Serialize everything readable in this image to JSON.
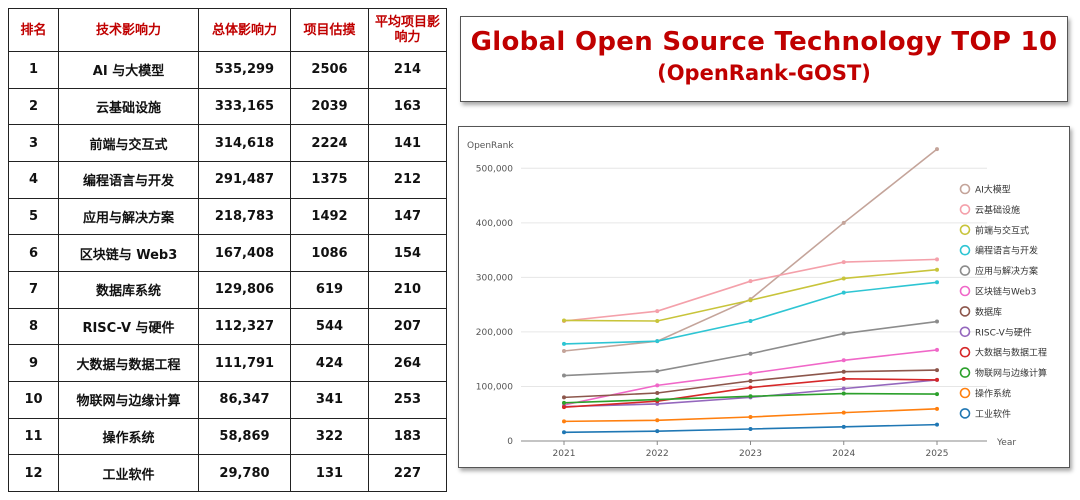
{
  "table": {
    "headers": [
      "排名",
      "技术影响力",
      "总体影响力",
      "项目估摸",
      "平均项目影响力"
    ],
    "rows": [
      [
        "1",
        "AI 与大模型",
        "535,299",
        "2506",
        "214"
      ],
      [
        "2",
        "云基础设施",
        "333,165",
        "2039",
        "163"
      ],
      [
        "3",
        "前端与交互式",
        "314,618",
        "2224",
        "141"
      ],
      [
        "4",
        "编程语言与开发",
        "291,487",
        "1375",
        "212"
      ],
      [
        "5",
        "应用与解决方案",
        "218,783",
        "1492",
        "147"
      ],
      [
        "6",
        "区块链与 Web3",
        "167,408",
        "1086",
        "154"
      ],
      [
        "7",
        "数据库系统",
        "129,806",
        "619",
        "210"
      ],
      [
        "8",
        "RISC-V 与硬件",
        "112,327",
        "544",
        "207"
      ],
      [
        "9",
        "大数据与数据工程",
        "111,791",
        "424",
        "264"
      ],
      [
        "10",
        "物联网与边缘计算",
        "86,347",
        "341",
        "253"
      ],
      [
        "11",
        "操作系统",
        "58,869",
        "322",
        "183"
      ],
      [
        "12",
        "工业软件",
        "29,780",
        "131",
        "227"
      ]
    ]
  },
  "title": {
    "line1": "Global Open Source Technology TOP 10",
    "line2": "(OpenRank-GOST)"
  },
  "chart_data": {
    "type": "line",
    "ylabel": "OpenRank",
    "xlabel": "Year",
    "x": [
      "2021",
      "2022",
      "2023",
      "2024",
      "2025"
    ],
    "ylim": [
      0,
      550000
    ],
    "yticks": [
      0,
      100000,
      200000,
      300000,
      400000,
      500000
    ],
    "ytick_labels": [
      "0",
      "100,000",
      "200,000",
      "300,000",
      "400,000",
      "500,000"
    ],
    "legend_position": "right",
    "series": [
      {
        "name": "AI大模型",
        "color": "#c4a49a",
        "values": [
          165000,
          183000,
          260000,
          400000,
          535000
        ]
      },
      {
        "name": "云基础设施",
        "color": "#f4a0aa",
        "values": [
          220000,
          238000,
          293000,
          328000,
          333000
        ]
      },
      {
        "name": "前端与交互式",
        "color": "#c8c43a",
        "values": [
          221000,
          220000,
          258000,
          298000,
          314000
        ]
      },
      {
        "name": "编程语言与开发",
        "color": "#2ec5d3",
        "values": [
          178000,
          183000,
          220000,
          272000,
          291000
        ]
      },
      {
        "name": "应用与解决方案",
        "color": "#8c8c8c",
        "values": [
          120000,
          128000,
          160000,
          197000,
          219000
        ]
      },
      {
        "name": "区块链与Web3",
        "color": "#f067c8",
        "values": [
          66000,
          102000,
          124000,
          148000,
          167000
        ]
      },
      {
        "name": "数据库",
        "color": "#8c564b",
        "values": [
          80000,
          88000,
          110000,
          127000,
          130000
        ]
      },
      {
        "name": "RISC-V与硬件",
        "color": "#9467bd",
        "values": [
          63000,
          68000,
          80000,
          96000,
          112000
        ]
      },
      {
        "name": "大数据与数据工程",
        "color": "#d62728",
        "values": [
          62000,
          73000,
          98000,
          114000,
          112000
        ]
      },
      {
        "name": "物联网与边缘计算",
        "color": "#2ca02c",
        "values": [
          70000,
          76000,
          82000,
          87000,
          86000
        ]
      },
      {
        "name": "操作系统",
        "color": "#ff7f0e",
        "values": [
          36000,
          38000,
          44000,
          52000,
          59000
        ]
      },
      {
        "name": "工业软件",
        "color": "#1f77b4",
        "values": [
          16000,
          18000,
          22000,
          26000,
          30000
        ]
      }
    ]
  }
}
